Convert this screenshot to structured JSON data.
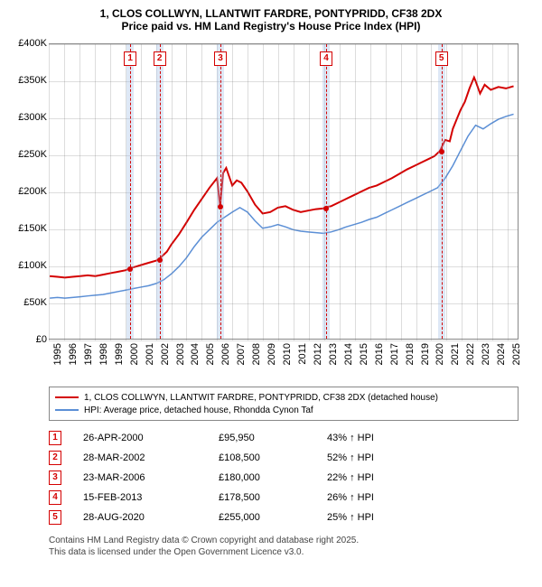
{
  "title_line1": "1, CLOS COLLWYN, LLANTWIT FARDRE, PONTYPRIDD, CF38 2DX",
  "title_line2": "Price paid vs. HM Land Registry's House Price Index (HPI)",
  "chart": {
    "type": "line",
    "background_color": "#ffffff",
    "grid_color": "rgba(120,120,120,0.25)",
    "axis_color": "#888888",
    "x_range": [
      1995,
      2025.7
    ],
    "y_range": [
      0,
      400000
    ],
    "y_ticks": [
      0,
      50000,
      100000,
      150000,
      200000,
      250000,
      300000,
      350000,
      400000
    ],
    "y_tick_labels": [
      "£0",
      "£50K",
      "£100K",
      "£150K",
      "£200K",
      "£250K",
      "£300K",
      "£350K",
      "£400K"
    ],
    "x_ticks": [
      1995,
      1996,
      1997,
      1998,
      1999,
      2000,
      2001,
      2002,
      2003,
      2004,
      2005,
      2006,
      2007,
      2008,
      2009,
      2010,
      2011,
      2012,
      2013,
      2014,
      2015,
      2016,
      2017,
      2018,
      2019,
      2020,
      2021,
      2022,
      2023,
      2024,
      2025
    ],
    "series": [
      {
        "id": "property",
        "name": "1, CLOS COLLWYN, LLANTWIT FARDRE, PONTYPRIDD, CF38 2DX (detached house)",
        "color": "#d40000",
        "line_width": 2,
        "points": [
          [
            1995.0,
            85000
          ],
          [
            1995.5,
            84000
          ],
          [
            1996.0,
            83000
          ],
          [
            1996.5,
            84000
          ],
          [
            1997.0,
            85000
          ],
          [
            1997.5,
            86000
          ],
          [
            1998.0,
            85000
          ],
          [
            1998.5,
            87000
          ],
          [
            1999.0,
            89000
          ],
          [
            1999.5,
            91000
          ],
          [
            2000.0,
            93000
          ],
          [
            2000.3,
            95950
          ],
          [
            2000.7,
            98000
          ],
          [
            2001.0,
            100000
          ],
          [
            2001.5,
            103000
          ],
          [
            2002.0,
            106000
          ],
          [
            2002.2,
            108500
          ],
          [
            2002.7,
            118000
          ],
          [
            2003.0,
            128000
          ],
          [
            2003.5,
            142000
          ],
          [
            2004.0,
            158000
          ],
          [
            2004.5,
            175000
          ],
          [
            2005.0,
            190000
          ],
          [
            2005.5,
            205000
          ],
          [
            2006.0,
            218000
          ],
          [
            2006.2,
            180000
          ],
          [
            2006.4,
            225000
          ],
          [
            2006.6,
            232000
          ],
          [
            2007.0,
            208000
          ],
          [
            2007.3,
            215000
          ],
          [
            2007.6,
            212000
          ],
          [
            2008.0,
            200000
          ],
          [
            2008.5,
            182000
          ],
          [
            2009.0,
            170000
          ],
          [
            2009.5,
            172000
          ],
          [
            2010.0,
            178000
          ],
          [
            2010.5,
            180000
          ],
          [
            2011.0,
            175000
          ],
          [
            2011.5,
            172000
          ],
          [
            2012.0,
            174000
          ],
          [
            2012.5,
            176000
          ],
          [
            2013.0,
            177000
          ],
          [
            2013.1,
            178500
          ],
          [
            2013.5,
            180000
          ],
          [
            2014.0,
            185000
          ],
          [
            2014.5,
            190000
          ],
          [
            2015.0,
            195000
          ],
          [
            2015.5,
            200000
          ],
          [
            2016.0,
            205000
          ],
          [
            2016.5,
            208000
          ],
          [
            2017.0,
            213000
          ],
          [
            2017.5,
            218000
          ],
          [
            2018.0,
            224000
          ],
          [
            2018.5,
            230000
          ],
          [
            2019.0,
            235000
          ],
          [
            2019.5,
            240000
          ],
          [
            2020.0,
            245000
          ],
          [
            2020.3,
            248000
          ],
          [
            2020.65,
            255000
          ],
          [
            2021.0,
            270000
          ],
          [
            2021.3,
            268000
          ],
          [
            2021.5,
            285000
          ],
          [
            2021.8,
            300000
          ],
          [
            2022.0,
            310000
          ],
          [
            2022.3,
            322000
          ],
          [
            2022.6,
            340000
          ],
          [
            2022.9,
            355000
          ],
          [
            2023.0,
            350000
          ],
          [
            2023.3,
            333000
          ],
          [
            2023.6,
            345000
          ],
          [
            2024.0,
            338000
          ],
          [
            2024.5,
            342000
          ],
          [
            2025.0,
            340000
          ],
          [
            2025.5,
            343000
          ]
        ]
      },
      {
        "id": "hpi",
        "name": "HPI: Average price, detached house, Rhondda Cynon Taf",
        "color": "#5b8fd6",
        "line_width": 1.5,
        "points": [
          [
            1995.0,
            55000
          ],
          [
            1995.5,
            56000
          ],
          [
            1996.0,
            55000
          ],
          [
            1996.5,
            56000
          ],
          [
            1997.0,
            57000
          ],
          [
            1997.5,
            58000
          ],
          [
            1998.0,
            59000
          ],
          [
            1998.5,
            60000
          ],
          [
            1999.0,
            62000
          ],
          [
            1999.5,
            64000
          ],
          [
            2000.0,
            66000
          ],
          [
            2000.5,
            68000
          ],
          [
            2001.0,
            70000
          ],
          [
            2001.5,
            72000
          ],
          [
            2002.0,
            75000
          ],
          [
            2002.5,
            80000
          ],
          [
            2003.0,
            88000
          ],
          [
            2003.5,
            98000
          ],
          [
            2004.0,
            110000
          ],
          [
            2004.5,
            125000
          ],
          [
            2005.0,
            138000
          ],
          [
            2005.5,
            148000
          ],
          [
            2006.0,
            158000
          ],
          [
            2006.5,
            165000
          ],
          [
            2007.0,
            172000
          ],
          [
            2007.5,
            178000
          ],
          [
            2008.0,
            172000
          ],
          [
            2008.5,
            160000
          ],
          [
            2009.0,
            150000
          ],
          [
            2009.5,
            152000
          ],
          [
            2010.0,
            155000
          ],
          [
            2010.5,
            152000
          ],
          [
            2011.0,
            148000
          ],
          [
            2011.5,
            146000
          ],
          [
            2012.0,
            145000
          ],
          [
            2012.5,
            144000
          ],
          [
            2013.0,
            143000
          ],
          [
            2013.5,
            145000
          ],
          [
            2014.0,
            148000
          ],
          [
            2014.5,
            152000
          ],
          [
            2015.0,
            155000
          ],
          [
            2015.5,
            158000
          ],
          [
            2016.0,
            162000
          ],
          [
            2016.5,
            165000
          ],
          [
            2017.0,
            170000
          ],
          [
            2017.5,
            175000
          ],
          [
            2018.0,
            180000
          ],
          [
            2018.5,
            185000
          ],
          [
            2019.0,
            190000
          ],
          [
            2019.5,
            195000
          ],
          [
            2020.0,
            200000
          ],
          [
            2020.5,
            205000
          ],
          [
            2021.0,
            218000
          ],
          [
            2021.5,
            235000
          ],
          [
            2022.0,
            255000
          ],
          [
            2022.5,
            275000
          ],
          [
            2023.0,
            290000
          ],
          [
            2023.5,
            285000
          ],
          [
            2024.0,
            292000
          ],
          [
            2024.5,
            298000
          ],
          [
            2025.0,
            302000
          ],
          [
            2025.5,
            305000
          ]
        ]
      }
    ],
    "marker_band_color": "rgba(160,190,230,0.35)",
    "marker_border_color": "#d40000",
    "marker_text_color": "#d40000",
    "markers": [
      {
        "n": "1",
        "x": 2000.32,
        "y": 95950
      },
      {
        "n": "2",
        "x": 2002.24,
        "y": 108500
      },
      {
        "n": "3",
        "x": 2006.22,
        "y": 180000
      },
      {
        "n": "4",
        "x": 2013.13,
        "y": 178500
      },
      {
        "n": "5",
        "x": 2020.66,
        "y": 255000
      }
    ]
  },
  "legend": {
    "items": [
      {
        "color": "#d40000",
        "label": "1, CLOS COLLWYN, LLANTWIT FARDRE, PONTYPRIDD, CF38 2DX (detached house)"
      },
      {
        "color": "#5b8fd6",
        "label": "HPI: Average price, detached house, Rhondda Cynon Taf"
      }
    ]
  },
  "sales": {
    "idx_color": "#d40000",
    "rows": [
      {
        "n": "1",
        "date": "26-APR-2000",
        "price": "£95,950",
        "pct": "43% ↑ HPI"
      },
      {
        "n": "2",
        "date": "28-MAR-2002",
        "price": "£108,500",
        "pct": "52% ↑ HPI"
      },
      {
        "n": "3",
        "date": "23-MAR-2006",
        "price": "£180,000",
        "pct": "22% ↑ HPI"
      },
      {
        "n": "4",
        "date": "15-FEB-2013",
        "price": "£178,500",
        "pct": "26% ↑ HPI"
      },
      {
        "n": "5",
        "date": "28-AUG-2020",
        "price": "£255,000",
        "pct": "25% ↑ HPI"
      }
    ]
  },
  "footer_line1": "Contains HM Land Registry data © Crown copyright and database right 2025.",
  "footer_line2": "This data is licensed under the Open Government Licence v3.0."
}
